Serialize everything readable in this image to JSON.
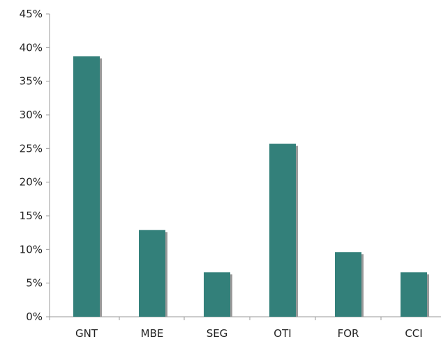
{
  "colors": {
    "bar": "#33807a",
    "bar_shadow": "#9a9a9a",
    "axis": "#9a9a9a"
  },
  "chart_data": {
    "type": "bar",
    "categories": [
      "GNT",
      "MBE",
      "SEG",
      "OTI",
      "FOR",
      "CCI"
    ],
    "values": [
      38.7,
      12.9,
      6.6,
      25.7,
      9.6,
      6.6
    ],
    "ylim": [
      0,
      45
    ],
    "ytick_values": [
      0,
      5,
      10,
      15,
      20,
      25,
      30,
      35,
      40,
      45
    ],
    "ytick_labels": [
      "0%",
      "5%",
      "10%",
      "15%",
      "20%",
      "25%",
      "30%",
      "35%",
      "40%",
      "45%"
    ],
    "grid": false,
    "legend": "none",
    "title": "",
    "xlabel": "",
    "ylabel": ""
  }
}
